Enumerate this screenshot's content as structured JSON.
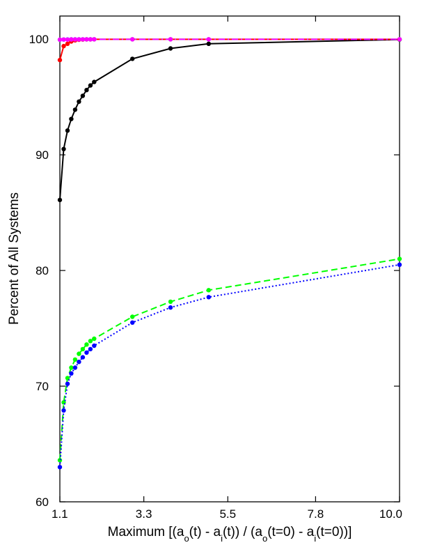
{
  "chart_data": {
    "type": "line",
    "title": "",
    "xlabel": {
      "parts": [
        {
          "t": "Maximum [(a"
        },
        {
          "t": "o",
          "sub": true
        },
        {
          "t": "(t) - a"
        },
        {
          "t": "i",
          "sub": true
        },
        {
          "t": "(t)) / (a"
        },
        {
          "t": "o",
          "sub": true
        },
        {
          "t": "(t=0) - a"
        },
        {
          "t": "i",
          "sub": true
        },
        {
          "t": "(t=0))]"
        }
      ]
    },
    "ylabel": "Percent of All Systems",
    "xlim": [
      1.1,
      10.0
    ],
    "ylim": [
      60,
      102
    ],
    "xticks": [
      1.1,
      3.3,
      5.5,
      7.8,
      10.0
    ],
    "xtick_labels": [
      "1.1",
      "3.3",
      "5.5",
      "7.8",
      "10.0"
    ],
    "yticks": [
      60,
      70,
      80,
      90,
      100
    ],
    "ytick_labels": [
      "60",
      "70",
      "80",
      "90",
      "100"
    ],
    "grid": false,
    "series": [
      {
        "color": "#000000",
        "dash": "solid",
        "x": [
          1.1,
          1.2,
          1.3,
          1.4,
          1.5,
          1.6,
          1.7,
          1.8,
          1.9,
          2.0,
          3.0,
          4.0,
          5.0,
          10.0
        ],
        "y": [
          86.1,
          90.5,
          92.1,
          93.1,
          93.9,
          94.6,
          95.1,
          95.6,
          96.0,
          96.3,
          98.3,
          99.2,
          99.6,
          99.97
        ]
      },
      {
        "color": "#ff0000",
        "dash": "solid",
        "x": [
          1.1,
          1.2,
          1.3,
          1.4,
          1.5,
          1.6,
          1.7,
          1.8,
          1.9,
          2.0,
          3.0,
          4.0,
          5.0,
          10.0
        ],
        "y": [
          98.2,
          99.4,
          99.6,
          99.8,
          99.9,
          99.95,
          99.97,
          99.98,
          99.98,
          99.99,
          99.99,
          99.99,
          99.99,
          99.99
        ]
      },
      {
        "color": "#00ffff",
        "dash": "dashdot",
        "x": [
          1.1,
          1.2,
          1.3,
          1.4,
          1.5,
          1.6,
          1.7,
          1.8,
          1.9,
          2.0,
          3.0,
          4.0,
          5.0,
          10.0
        ],
        "y": [
          99.95,
          99.97,
          99.98,
          99.98,
          99.99,
          99.99,
          99.99,
          99.99,
          99.99,
          99.99,
          99.99,
          99.99,
          99.99,
          99.99
        ]
      },
      {
        "color": "#ff00ff",
        "dash": "dashdot",
        "x": [
          1.1,
          1.2,
          1.3,
          1.4,
          1.5,
          1.6,
          1.7,
          1.8,
          1.9,
          2.0,
          3.0,
          4.0,
          5.0,
          10.0
        ],
        "y": [
          99.96,
          99.97,
          99.97,
          99.98,
          99.98,
          99.98,
          99.99,
          99.99,
          99.99,
          99.99,
          99.99,
          99.99,
          99.99,
          99.99
        ]
      },
      {
        "color": "#00ff00",
        "dash": "dashed",
        "x": [
          1.1,
          1.2,
          1.3,
          1.4,
          1.5,
          1.6,
          1.7,
          1.8,
          1.9,
          2.0,
          3.0,
          4.0,
          5.0,
          10.0
        ],
        "y": [
          63.6,
          68.6,
          70.7,
          71.6,
          72.3,
          72.8,
          73.2,
          73.6,
          73.9,
          74.1,
          76.0,
          77.3,
          78.3,
          81.0
        ]
      },
      {
        "color": "#0000ff",
        "dash": "dotted",
        "x": [
          1.1,
          1.2,
          1.3,
          1.4,
          1.5,
          1.6,
          1.7,
          1.8,
          1.9,
          2.0,
          3.0,
          4.0,
          5.0,
          10.0
        ],
        "y": [
          63.0,
          67.9,
          70.2,
          71.1,
          71.6,
          72.1,
          72.5,
          72.9,
          73.2,
          73.5,
          75.5,
          76.8,
          77.7,
          80.5
        ]
      }
    ]
  }
}
